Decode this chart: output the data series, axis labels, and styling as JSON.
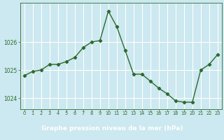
{
  "x": [
    0,
    1,
    2,
    3,
    4,
    5,
    6,
    7,
    8,
    9,
    10,
    11,
    12,
    13,
    14,
    15,
    16,
    17,
    18,
    19,
    20,
    21,
    22,
    23
  ],
  "y": [
    1024.8,
    1024.95,
    1025.0,
    1025.2,
    1025.2,
    1025.3,
    1025.45,
    1025.8,
    1026.0,
    1026.05,
    1027.1,
    1026.55,
    1025.7,
    1024.85,
    1024.85,
    1024.6,
    1024.35,
    1024.15,
    1023.9,
    1023.85,
    1023.85,
    1025.0,
    1025.2,
    1025.55
  ],
  "line_color": "#2d6a2d",
  "marker": "D",
  "marker_size": 2.2,
  "bg_color": "#cce8f0",
  "grid_color": "#ffffff",
  "tick_color": "#2d6a2d",
  "xlabel": "Graphe pression niveau de la mer (hPa)",
  "xlabel_color": "#2d6a2d",
  "bottom_bar_color": "#3a7a3a",
  "ylim": [
    1023.6,
    1027.4
  ],
  "yticks": [
    1024,
    1025,
    1026
  ],
  "xticks": [
    0,
    1,
    2,
    3,
    4,
    5,
    6,
    7,
    8,
    9,
    10,
    11,
    12,
    13,
    14,
    15,
    16,
    17,
    18,
    19,
    20,
    21,
    22,
    23
  ]
}
